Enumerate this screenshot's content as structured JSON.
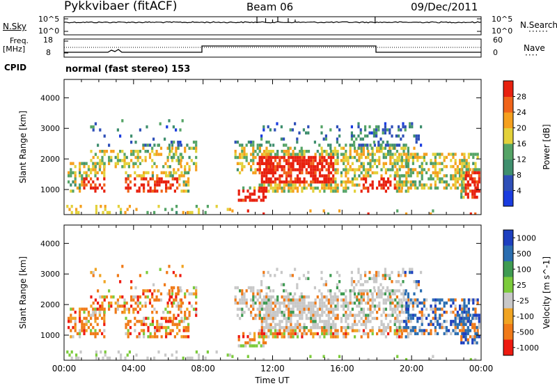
{
  "header": {
    "station": "Pykkvibaer (fitACF)",
    "beam": "Beam 06",
    "date": "09/Dec/2011"
  },
  "noise_panel": {
    "left_label": "N.Sky",
    "right_label": "N.Search",
    "left_ticks": [
      "10^5",
      "10^0"
    ],
    "right_ticks": [
      "10^5",
      "10^0"
    ]
  },
  "freq_panel": {
    "left_label_1": "Freq.",
    "left_label_2": "[MHz]",
    "left_ticks": [
      "18",
      "8"
    ],
    "right_ticks": [
      "60",
      "0"
    ],
    "right_label": "Nave"
  },
  "cpid": {
    "label": "CPID",
    "value": "normal (fast stereo) 153"
  },
  "colors": {
    "power_scale": [
      "#1a3cdf",
      "#2e4fb8",
      "#3f8f6e",
      "#55a466",
      "#e3d13a",
      "#f5a01e",
      "#f0641a",
      "#e8210f"
    ],
    "velocity_scale": [
      "#1d3fbf",
      "#2a6db0",
      "#3f9b52",
      "#7ccb3c",
      "#c8c8c8",
      "#f0a423",
      "#f07a18",
      "#ee1a10"
    ]
  },
  "chart_data": [
    {
      "type": "heatmap",
      "name": "power",
      "xlabel": "",
      "ylabel": "Slant Range [km]",
      "ylim": [
        180,
        4600
      ],
      "y_ticks": [
        "1000",
        "2000",
        "3000",
        "4000"
      ],
      "colorbar_label": "Power [dB]",
      "colorbar_ticks": [
        "4",
        "8",
        "12",
        "16",
        "20",
        "24",
        "28"
      ],
      "colorbar_range": [
        0,
        30
      ]
    },
    {
      "type": "heatmap",
      "name": "velocity",
      "xlabel": "Time UT",
      "ylabel": "Slant Range [km]",
      "ylim": [
        180,
        4600
      ],
      "y_ticks": [
        "1000",
        "2000",
        "3000",
        "4000"
      ],
      "x_ticks": [
        "00:00",
        "04:00",
        "08:00",
        "12:00",
        "16:00",
        "20:00",
        "00:00"
      ],
      "colorbar_label": "Velocity [m s^-1]",
      "colorbar_ticks": [
        "1000",
        "500",
        "100",
        "25",
        "-25",
        "-100",
        "-500",
        "-1000"
      ]
    }
  ]
}
